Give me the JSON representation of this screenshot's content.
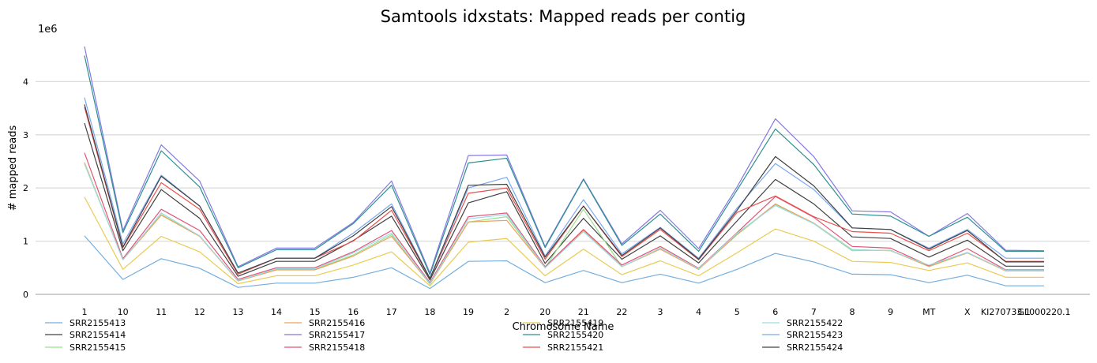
{
  "chart_data": {
    "type": "line",
    "title": "Samtools idxstats: Mapped reads per contig",
    "xlabel": "Chromosome Name",
    "ylabel": "# mapped reads",
    "y_multiplier_label": "1e6",
    "ylim": [
      0,
      4.8
    ],
    "yticks": [
      "0",
      "1",
      "2",
      "3",
      "4"
    ],
    "grid": "horizontal",
    "legend_position": "bottom",
    "categories": [
      "1",
      "10",
      "11",
      "12",
      "13",
      "14",
      "15",
      "16",
      "17",
      "18",
      "19",
      "2",
      "20",
      "21",
      "22",
      "3",
      "4",
      "5",
      "6",
      "7",
      "8",
      "9",
      "MT",
      "X",
      "KI270733.1",
      "GL000220.1"
    ],
    "series": [
      {
        "name": "SRR2155413",
        "color": "#74aede",
        "values": [
          1.1,
          0.28,
          0.67,
          0.49,
          0.13,
          0.21,
          0.21,
          0.32,
          0.5,
          0.11,
          0.62,
          0.63,
          0.22,
          0.45,
          0.22,
          0.38,
          0.21,
          0.47,
          0.77,
          0.61,
          0.38,
          0.37,
          0.22,
          0.36,
          0.16,
          0.16
        ]
      },
      {
        "name": "SRR2155414",
        "color": "#404040",
        "values": [
          3.22,
          0.82,
          1.97,
          1.43,
          0.34,
          0.62,
          0.62,
          1.01,
          1.47,
          0.27,
          1.72,
          1.93,
          0.58,
          1.43,
          0.66,
          1.1,
          0.59,
          1.38,
          2.16,
          1.7,
          1.08,
          1.05,
          0.7,
          1.02,
          0.53,
          0.53
        ]
      },
      {
        "name": "SRR2155415",
        "color": "#98e08e",
        "values": [
          2.45,
          0.66,
          1.5,
          1.1,
          0.25,
          0.47,
          0.47,
          0.74,
          1.12,
          0.19,
          1.36,
          1.46,
          0.5,
          1.6,
          0.52,
          0.87,
          0.47,
          1.12,
          1.69,
          1.33,
          0.82,
          0.83,
          0.52,
          0.78,
          0.45,
          0.45
        ]
      },
      {
        "name": "SRR2155416",
        "color": "#f1a058",
        "values": [
          2.48,
          0.65,
          1.49,
          1.09,
          0.25,
          0.46,
          0.46,
          0.72,
          1.09,
          0.2,
          1.36,
          1.39,
          0.5,
          1.2,
          0.52,
          0.85,
          0.47,
          1.13,
          1.7,
          1.34,
          0.84,
          0.82,
          0.53,
          0.78,
          0.44,
          0.44
        ]
      },
      {
        "name": "SRR2155417",
        "color": "#8578e4",
        "values": [
          4.66,
          1.2,
          2.81,
          2.13,
          0.52,
          0.87,
          0.87,
          1.35,
          2.13,
          0.4,
          2.61,
          2.62,
          0.9,
          2.17,
          0.95,
          1.58,
          0.86,
          2.02,
          3.3,
          2.59,
          1.57,
          1.55,
          1.09,
          1.52,
          0.83,
          0.82
        ]
      },
      {
        "name": "SRR2155418",
        "color": "#e05478",
        "values": [
          2.66,
          0.67,
          1.6,
          1.2,
          0.28,
          0.5,
          0.5,
          0.8,
          1.2,
          0.22,
          1.46,
          1.53,
          0.52,
          1.22,
          0.55,
          0.9,
          0.49,
          1.16,
          1.84,
          1.45,
          0.9,
          0.87,
          0.54,
          0.86,
          0.46,
          0.46
        ]
      },
      {
        "name": "SRR2155419",
        "color": "#e9cb50",
        "values": [
          1.83,
          0.47,
          1.09,
          0.8,
          0.2,
          0.35,
          0.35,
          0.55,
          0.8,
          0.16,
          0.98,
          1.05,
          0.35,
          0.85,
          0.37,
          0.63,
          0.35,
          0.78,
          1.23,
          1.0,
          0.62,
          0.6,
          0.45,
          0.59,
          0.32,
          0.32
        ]
      },
      {
        "name": "SRR2155420",
        "color": "#2b908f",
        "values": [
          4.49,
          1.16,
          2.7,
          2.02,
          0.5,
          0.84,
          0.84,
          1.33,
          2.05,
          0.37,
          2.47,
          2.56,
          0.88,
          2.16,
          0.92,
          1.51,
          0.81,
          1.96,
          3.11,
          2.44,
          1.51,
          1.47,
          1.09,
          1.45,
          0.81,
          0.81
        ]
      },
      {
        "name": "SRR2155421",
        "color": "#e8514e",
        "values": [
          3.52,
          0.88,
          2.1,
          1.6,
          0.38,
          0.68,
          0.68,
          1.0,
          1.58,
          0.3,
          1.9,
          2.0,
          0.66,
          1.66,
          0.71,
          1.22,
          0.65,
          1.54,
          1.85,
          1.46,
          1.18,
          1.15,
          0.82,
          1.15,
          0.62,
          0.62
        ]
      },
      {
        "name": "SRR2155422",
        "color": "#9bdce6",
        "values": [
          2.46,
          0.65,
          1.53,
          1.1,
          0.26,
          0.48,
          0.48,
          0.78,
          1.15,
          0.2,
          1.42,
          1.5,
          0.5,
          1.18,
          0.52,
          0.87,
          0.48,
          1.15,
          1.67,
          1.33,
          0.84,
          0.82,
          0.55,
          0.79,
          0.45,
          0.45
        ]
      },
      {
        "name": "SRR2155423",
        "color": "#7aaaf0",
        "values": [
          3.7,
          0.95,
          2.24,
          1.66,
          0.4,
          0.68,
          0.68,
          1.15,
          1.7,
          0.3,
          2.0,
          2.2,
          0.72,
          1.78,
          0.76,
          1.26,
          0.68,
          1.62,
          2.46,
          1.97,
          1.25,
          1.22,
          0.87,
          1.22,
          0.68,
          0.68
        ]
      },
      {
        "name": "SRR2155424",
        "color": "#404040",
        "values": [
          3.57,
          0.89,
          2.22,
          1.66,
          0.4,
          0.68,
          0.68,
          1.1,
          1.65,
          0.3,
          2.05,
          2.07,
          0.7,
          1.66,
          0.73,
          1.25,
          0.66,
          1.58,
          2.59,
          2.04,
          1.25,
          1.22,
          0.85,
          1.2,
          0.61,
          0.61
        ]
      }
    ]
  }
}
